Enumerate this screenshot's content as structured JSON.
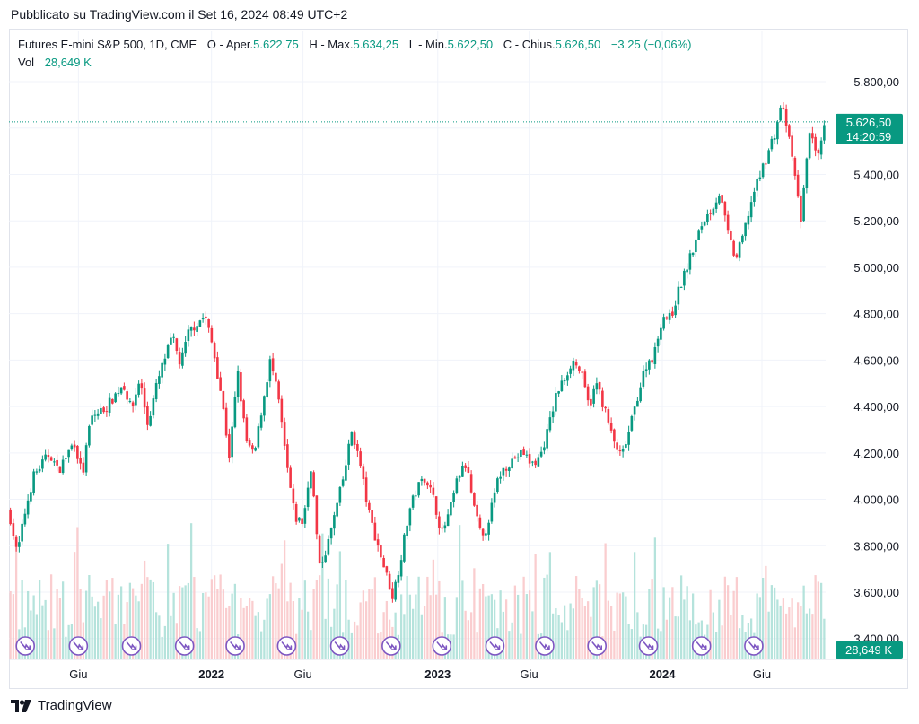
{
  "header": {
    "published": "Pubblicato su TradingView.com il Set 16, 2024 08:49 UTC+2"
  },
  "legend": {
    "symbol": "Futures E-mini S&P 500, 1D, CME",
    "open_label": "O - Aper.",
    "open": "5.622,75",
    "high_label": "H - Max.",
    "high": "5.634,25",
    "low_label": "L - Min.",
    "low": "5.622,50",
    "close_label": "C - Chius.",
    "close": "5.626,50",
    "change": "−3,25 (−0,06%)",
    "vol_label": "Vol",
    "vol": "28,649 K"
  },
  "price_badge": {
    "price": "5.626,50",
    "countdown": "14:20:59"
  },
  "volume_badge": "28,649 K",
  "footer": {
    "brand": "TradingView"
  },
  "colors": {
    "up": "#089981",
    "down": "#f23645",
    "up_vol": "#a8ded6",
    "down_vol": "#f9c4c7",
    "event": "#7e57c2"
  },
  "chart_data": {
    "type": "candlestick",
    "y_axis_ticks": [
      "5.800,00",
      "5.600,00",
      "5.400,00",
      "5.200,00",
      "5.000,00",
      "4.800,00",
      "4.600,00",
      "4.400,00",
      "4.200,00",
      "4.000,00",
      "3.800,00",
      "3.600,00",
      "3.400,00"
    ],
    "y_axis_values": [
      5800,
      5600,
      5400,
      5200,
      5000,
      4800,
      4600,
      4400,
      4200,
      4000,
      3800,
      3600,
      3400
    ],
    "ylim": [
      3310,
      5920
    ],
    "x_axis_ticks": [
      {
        "label": "Giu",
        "t": 0.085,
        "bold": false
      },
      {
        "label": "2022",
        "t": 0.248,
        "bold": true
      },
      {
        "label": "Giu",
        "t": 0.36,
        "bold": false
      },
      {
        "label": "2023",
        "t": 0.525,
        "bold": true
      },
      {
        "label": "Giu",
        "t": 0.637,
        "bold": false
      },
      {
        "label": "2024",
        "t": 0.8,
        "bold": true
      },
      {
        "label": "Giu",
        "t": 0.922,
        "bold": false
      }
    ],
    "last_price": 5626.5,
    "path": [
      [
        0.0,
        3950
      ],
      [
        0.01,
        3760
      ],
      [
        0.02,
        3950
      ],
      [
        0.03,
        4100
      ],
      [
        0.05,
        4200
      ],
      [
        0.06,
        4120
      ],
      [
        0.08,
        4250
      ],
      [
        0.09,
        4100
      ],
      [
        0.1,
        4350
      ],
      [
        0.12,
        4400
      ],
      [
        0.14,
        4500
      ],
      [
        0.15,
        4380
      ],
      [
        0.16,
        4520
      ],
      [
        0.17,
        4320
      ],
      [
        0.18,
        4480
      ],
      [
        0.19,
        4600
      ],
      [
        0.2,
        4700
      ],
      [
        0.21,
        4580
      ],
      [
        0.22,
        4720
      ],
      [
        0.23,
        4760
      ],
      [
        0.24,
        4790
      ],
      [
        0.25,
        4650
      ],
      [
        0.26,
        4450
      ],
      [
        0.27,
        4180
      ],
      [
        0.28,
        4550
      ],
      [
        0.29,
        4260
      ],
      [
        0.3,
        4180
      ],
      [
        0.31,
        4400
      ],
      [
        0.32,
        4600
      ],
      [
        0.33,
        4430
      ],
      [
        0.34,
        4150
      ],
      [
        0.35,
        3920
      ],
      [
        0.36,
        3900
      ],
      [
        0.37,
        4150
      ],
      [
        0.38,
        3700
      ],
      [
        0.39,
        3800
      ],
      [
        0.4,
        3950
      ],
      [
        0.41,
        4100
      ],
      [
        0.42,
        4300
      ],
      [
        0.43,
        4150
      ],
      [
        0.44,
        3950
      ],
      [
        0.45,
        3820
      ],
      [
        0.46,
        3700
      ],
      [
        0.47,
        3580
      ],
      [
        0.48,
        3750
      ],
      [
        0.49,
        3950
      ],
      [
        0.5,
        4050
      ],
      [
        0.51,
        4100
      ],
      [
        0.52,
        4000
      ],
      [
        0.53,
        3850
      ],
      [
        0.54,
        3950
      ],
      [
        0.55,
        4100
      ],
      [
        0.56,
        4150
      ],
      [
        0.57,
        3950
      ],
      [
        0.58,
        3820
      ],
      [
        0.59,
        3950
      ],
      [
        0.6,
        4100
      ],
      [
        0.61,
        4150
      ],
      [
        0.62,
        4180
      ],
      [
        0.63,
        4200
      ],
      [
        0.64,
        4150
      ],
      [
        0.65,
        4180
      ],
      [
        0.66,
        4300
      ],
      [
        0.67,
        4450
      ],
      [
        0.68,
        4520
      ],
      [
        0.69,
        4600
      ],
      [
        0.7,
        4550
      ],
      [
        0.71,
        4400
      ],
      [
        0.72,
        4500
      ],
      [
        0.73,
        4380
      ],
      [
        0.74,
        4250
      ],
      [
        0.75,
        4180
      ],
      [
        0.76,
        4300
      ],
      [
        0.77,
        4450
      ],
      [
        0.78,
        4580
      ],
      [
        0.79,
        4620
      ],
      [
        0.8,
        4790
      ],
      [
        0.81,
        4780
      ],
      [
        0.82,
        4900
      ],
      [
        0.83,
        5000
      ],
      [
        0.84,
        5100
      ],
      [
        0.85,
        5200
      ],
      [
        0.86,
        5250
      ],
      [
        0.87,
        5320
      ],
      [
        0.88,
        5150
      ],
      [
        0.89,
        5030
      ],
      [
        0.9,
        5150
      ],
      [
        0.91,
        5300
      ],
      [
        0.92,
        5400
      ],
      [
        0.93,
        5500
      ],
      [
        0.94,
        5600
      ],
      [
        0.945,
        5700
      ],
      [
        0.95,
        5650
      ],
      [
        0.96,
        5450
      ],
      [
        0.97,
        5200
      ],
      [
        0.98,
        5600
      ],
      [
        0.99,
        5450
      ],
      [
        1.0,
        5626
      ]
    ],
    "event_markers_t": [
      0.02,
      0.085,
      0.15,
      0.215,
      0.277,
      0.34,
      0.405,
      0.468,
      0.53,
      0.595,
      0.656,
      0.72,
      0.783,
      0.848,
      0.912
    ]
  }
}
